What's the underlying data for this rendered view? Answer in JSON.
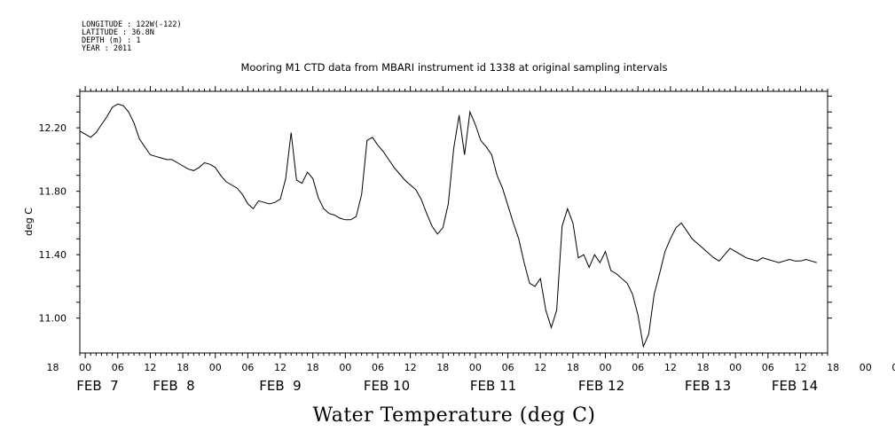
{
  "meta": [
    "LONGITUDE : 122W(-122)",
    "LATITUDE : 36.8N",
    "DEPTH (m) : 1",
    "YEAR : 2011"
  ],
  "chart_data": {
    "type": "line",
    "title": "Mooring M1 CTD data from MBARI instrument id 1338 at original sampling intervals",
    "xlabel": "Water Temperature (deg C)",
    "ylabel": "deg C",
    "xlim_hours": [
      -1,
      137
    ],
    "ylim": [
      10.78,
      12.43
    ],
    "yticks": [
      "12.20",
      "11.80",
      "11.40",
      "11.00"
    ],
    "ytick_values": [
      12.2,
      11.8,
      11.4,
      11.0
    ],
    "hour_labels": [
      "18",
      "00",
      "06",
      "12",
      "18",
      "00",
      "06",
      "12",
      "18",
      "00",
      "06",
      "12",
      "18",
      "00",
      "06",
      "12",
      "18",
      "00",
      "06",
      "12",
      "18",
      "00",
      "06",
      "12",
      "18",
      "00",
      "06",
      "12",
      "18",
      "00",
      "06",
      "12"
    ],
    "day_labels": [
      {
        "label": "FEB  7",
        "hour": 6
      },
      {
        "label": "FEB  8",
        "hour": 25
      },
      {
        "label": "FEB  9",
        "hour": 44
      },
      {
        "label": "FEB 10",
        "hour": 64
      },
      {
        "label": "FEB 11",
        "hour": 84
      },
      {
        "label": "FEB 12",
        "hour": 104
      },
      {
        "label": "FEB 13",
        "hour": 124
      },
      {
        "label": "FEB 14",
        "hour": 140
      }
    ],
    "x_hours": [
      -1,
      0,
      1,
      2,
      3,
      4,
      5,
      6,
      7,
      8,
      9,
      10,
      11,
      12,
      13,
      14,
      15,
      16,
      17,
      18,
      19,
      20,
      21,
      22,
      23,
      24,
      25,
      26,
      27,
      28,
      29,
      30,
      31,
      32,
      33,
      34,
      35,
      36,
      37,
      38,
      39,
      40,
      41,
      42,
      43,
      44,
      45,
      46,
      47,
      48,
      49,
      50,
      51,
      52,
      53,
      54,
      55,
      56,
      57,
      58,
      59,
      60,
      61,
      62,
      63,
      64,
      65,
      66,
      67,
      68,
      69,
      70,
      71,
      72,
      73,
      74,
      75,
      76,
      77,
      78,
      79,
      80,
      81,
      82,
      83,
      84,
      85,
      86,
      87,
      88,
      89,
      90,
      91,
      92,
      93,
      94,
      95,
      96,
      97,
      98,
      99,
      100,
      101,
      102,
      103,
      104,
      105,
      106,
      107,
      108,
      109,
      110,
      111,
      112,
      113,
      114,
      115,
      116,
      117,
      118,
      119,
      120,
      121,
      122,
      123,
      124,
      125,
      126,
      127,
      128,
      129,
      130,
      131,
      132,
      133,
      134,
      135,
      136,
      137
    ],
    "series": [
      {
        "values": [
          12.18,
          12.16,
          12.14,
          12.17,
          12.22,
          12.27,
          12.33,
          12.35,
          12.34,
          12.3,
          12.23,
          12.13,
          12.08,
          12.03,
          12.02,
          12.01,
          12.0,
          12.0,
          11.98,
          11.96,
          11.94,
          11.93,
          11.95,
          11.98,
          11.97,
          11.95,
          11.9,
          11.86,
          11.84,
          11.82,
          11.78,
          11.72,
          11.69,
          11.74,
          11.73,
          11.72,
          11.73,
          11.75,
          11.88,
          12.17,
          11.87,
          11.85,
          11.92,
          11.88,
          11.76,
          11.69,
          11.66,
          11.65,
          11.63,
          11.62,
          11.62,
          11.64,
          11.78,
          12.12,
          12.14,
          12.09,
          12.05,
          12.0,
          11.95,
          11.91,
          11.87,
          11.84,
          11.81,
          11.75,
          11.66,
          11.58,
          11.53,
          11.57,
          11.72,
          12.07,
          12.28,
          12.03,
          12.3,
          12.22,
          12.12,
          12.08,
          12.03,
          11.9,
          11.82,
          11.71,
          11.6,
          11.5,
          11.35,
          11.22,
          11.2,
          11.25,
          11.05,
          10.94,
          11.05,
          11.58,
          11.69,
          11.6,
          11.38,
          11.4,
          11.32,
          11.4,
          11.35,
          11.42,
          11.3,
          11.28,
          11.25,
          11.22,
          11.15,
          11.02,
          10.82,
          10.9,
          11.15,
          11.28,
          11.42,
          11.5,
          11.57,
          11.6,
          11.55,
          11.5,
          11.47,
          11.44,
          11.41,
          11.38,
          11.36,
          11.4,
          11.44,
          11.42,
          11.4,
          11.38,
          11.37,
          11.36,
          11.38,
          11.37,
          11.36,
          11.35,
          11.36,
          11.37,
          11.36,
          11.36,
          11.37,
          11.36,
          11.35
        ]
      }
    ],
    "line_color": "#000000",
    "grid": false
  }
}
